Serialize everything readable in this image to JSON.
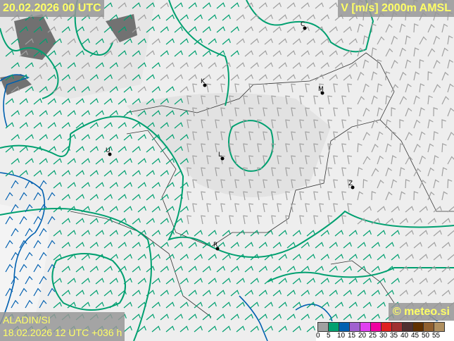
{
  "header": {
    "valid_time": "20.02.2026 00 UTC",
    "field": "V [m/s] 2000m AMSL"
  },
  "footer": {
    "model": "ALADIN/SI",
    "run": "18.02.2026 12 UTC +036 h",
    "copyright": "© meteo.si"
  },
  "legend": {
    "values": [
      "0",
      "5",
      "10",
      "15",
      "20",
      "25",
      "30",
      "35",
      "40",
      "45",
      "50",
      "55"
    ],
    "colors": [
      "#a0a0a0",
      "#00a070",
      "#0060b0",
      "#a060d0",
      "#e040f0",
      "#f000a0",
      "#e02020",
      "#a03030",
      "#503030",
      "#603000",
      "#906030",
      "#b09060"
    ]
  },
  "cities": [
    {
      "letter": "C"
    },
    {
      "letter": "K"
    },
    {
      "letter": "M"
    },
    {
      "letter": "U"
    },
    {
      "letter": "L"
    },
    {
      "letter": "Z"
    },
    {
      "letter": "R"
    }
  ],
  "colors": {
    "contour": "#00a070",
    "coast": "#0060b0",
    "border": "#333333",
    "label_text": "#ffff66"
  }
}
